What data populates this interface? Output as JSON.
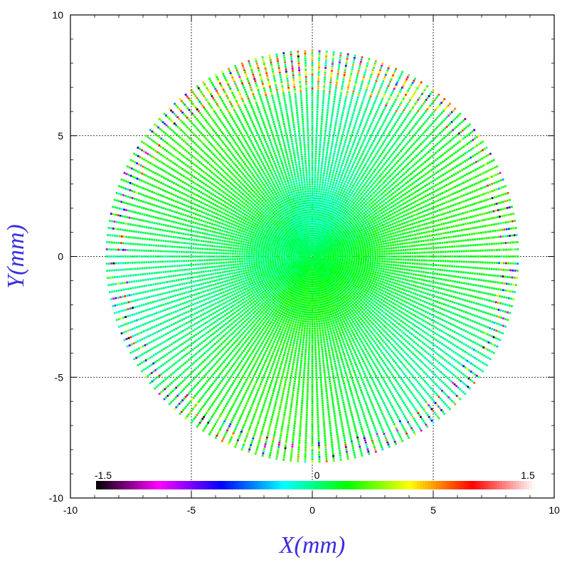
{
  "chart_data": {
    "type": "scatter",
    "title": "",
    "xlabel": "X(mm)",
    "ylabel": "Y(mm)",
    "xlim": [
      -10,
      10
    ],
    "ylim": [
      -10,
      10
    ],
    "xticks": [
      "-10",
      "-5",
      "0",
      "5",
      "10"
    ],
    "yticks": [
      "-10",
      "-5",
      "0",
      "5",
      "10"
    ],
    "grid": true,
    "grid_style": "dotted",
    "pattern": {
      "shape": "radial spokes of points",
      "outer_radius_mm": 8.5,
      "spoke_count": 180,
      "points_per_spoke": 88,
      "dominant_value_range": [
        -0.3,
        0.5
      ],
      "edge_value_range": [
        -1.5,
        1.1
      ]
    },
    "colorbar": {
      "min_label": "-1.5",
      "mid_label": "0",
      "max_label": "1.5",
      "range": [
        -1.5,
        1.5
      ],
      "palette": [
        "#000000",
        "#ff00ff",
        "#0000ff",
        "#00ffff",
        "#00ff00",
        "#ffff00",
        "#ff0000",
        "#ffffff"
      ],
      "placement": "bottom-inside"
    },
    "colors": {
      "axis_label": "#3c2ee0",
      "frame": "#000000",
      "grid": "#000000"
    }
  }
}
